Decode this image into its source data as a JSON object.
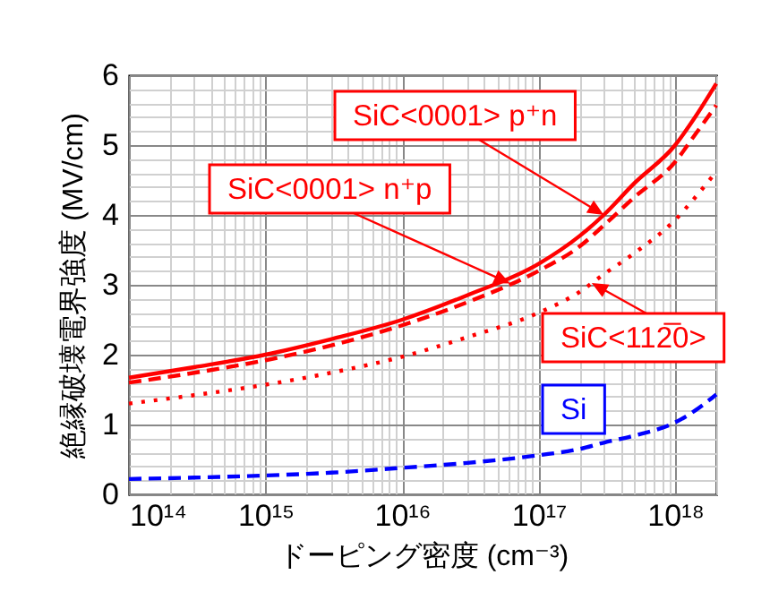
{
  "chart_data": {
    "type": "line",
    "xlabel": "ドーピング密度 (cm⁻³)",
    "ylabel": "絶縁破壊電界強度 (MV/cm)",
    "log": "x",
    "x": [
      100000000000000.0,
      300000000000000.0,
      1000000000000000.0,
      3000000000000000.0,
      1e+16,
      3e+16,
      1e+17,
      2e+17,
      3e+17,
      5e+17,
      1e+18,
      1.4e+18,
      2e+18
    ],
    "series": [
      {
        "name": "SiC<0001> p⁺n",
        "color": "#ff0000",
        "line_style": "solid",
        "values": [
          1.67,
          1.82,
          2.0,
          2.22,
          2.5,
          2.85,
          3.3,
          3.7,
          4.0,
          4.45,
          5.0,
          5.4,
          5.88
        ]
      },
      {
        "name": "SiC<0001> n⁺p",
        "color": "#ff0000",
        "line_style": "dashed",
        "values": [
          1.6,
          1.74,
          1.92,
          2.13,
          2.42,
          2.75,
          3.2,
          3.55,
          3.85,
          4.25,
          4.76,
          5.15,
          5.57
        ]
      },
      {
        "name": "SiC<112̅0>",
        "color": "#ff0000",
        "line_style": "dotted",
        "values": [
          1.3,
          1.42,
          1.57,
          1.74,
          1.97,
          2.25,
          2.6,
          2.9,
          3.15,
          3.45,
          3.93,
          4.25,
          4.62
        ]
      },
      {
        "name": "Si",
        "color": "#0000ff",
        "line_style": "dashed",
        "values": [
          0.22,
          0.24,
          0.27,
          0.31,
          0.38,
          0.45,
          0.56,
          0.65,
          0.74,
          0.84,
          1.03,
          1.2,
          1.43
        ]
      }
    ],
    "xlim": [
      100000000000000.0,
      2e+18
    ],
    "xticks": [
      {
        "value": 100000000000000.0,
        "label": "10¹⁴"
      },
      {
        "value": 1000000000000000.0,
        "label": "10¹⁵"
      },
      {
        "value": 1e+16,
        "label": "10¹⁶"
      },
      {
        "value": 1e+17,
        "label": "10¹⁷"
      },
      {
        "value": 1e+18,
        "label": "10¹⁸"
      }
    ],
    "ylim": [
      0,
      6
    ],
    "yticks": [
      0,
      1,
      2,
      3,
      4,
      5,
      6
    ],
    "grid": true
  }
}
